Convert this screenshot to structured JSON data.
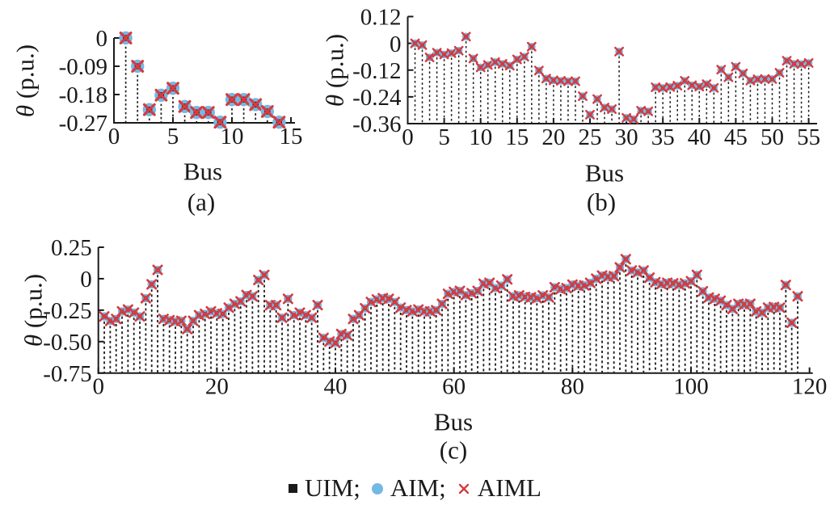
{
  "legend": {
    "items": [
      {
        "name": "UIM",
        "marker": "square",
        "color": "#1a1a1a",
        "label": "UIM;"
      },
      {
        "name": "AIM",
        "marker": "circle",
        "color": "#74B8E4",
        "label": "AIM;"
      },
      {
        "name": "AIML",
        "marker": "cross",
        "color": "#D63C41",
        "label": "AIML"
      }
    ]
  },
  "colors": {
    "uim_square": "#1a1a1a",
    "aim_circle": "#74B8E4",
    "aiml_cross": "#D63C41",
    "axis": "#1a1a1a",
    "stem": "#1a1a1a"
  },
  "chart_data": [
    {
      "id": "a",
      "type": "scatter",
      "caption": "(a)",
      "xlabel": "Bus",
      "ylabel": "θ (p.u.)",
      "ylabel_symbol": "θ",
      "ylabel_unit": " (p.u.)",
      "xlim": [
        0,
        15
      ],
      "ylim": [
        -0.27,
        0
      ],
      "grid": false,
      "legend_position": "shared-bottom",
      "xtick_labels": [
        "0",
        "5",
        "10",
        "15"
      ],
      "ytick_labels": [
        "0",
        "-0.09",
        "-0.18",
        "-0.27"
      ],
      "series_overlay": [
        "UIM",
        "AIM",
        "AIML"
      ],
      "note": "stem plot; the three method series coincide at every bus",
      "first_bus": 1,
      "values": [
        0,
        -0.09,
        -0.228,
        -0.182,
        -0.16,
        -0.218,
        -0.237,
        -0.237,
        -0.268,
        -0.196,
        -0.196,
        -0.212,
        -0.234,
        -0.268
      ]
    },
    {
      "id": "b",
      "type": "scatter",
      "caption": "(b)",
      "xlabel": "Bus",
      "ylabel": "θ (p.u.)",
      "ylabel_symbol": "θ",
      "ylabel_unit": " (p.u.)",
      "xlim": [
        0,
        55.6
      ],
      "ylim": [
        -0.36,
        0.12
      ],
      "grid": false,
      "legend_position": "shared-bottom",
      "xtick_labels": [
        "0",
        "5",
        "10",
        "15",
        "20",
        "25",
        "30",
        "35",
        "40",
        "45",
        "50",
        "55"
      ],
      "ytick_labels": [
        "0.12",
        "0",
        "-0.12",
        "-0.24",
        "-0.36"
      ],
      "series_overlay": [
        "UIM",
        "AIM",
        "AIML"
      ],
      "note": "stem plot; the three method series coincide at every bus",
      "first_bus": 1,
      "values": [
        0,
        -0.008,
        -0.063,
        -0.042,
        -0.05,
        -0.044,
        -0.033,
        0.03,
        -0.068,
        -0.108,
        -0.097,
        -0.084,
        -0.092,
        -0.1,
        -0.072,
        -0.06,
        -0.015,
        -0.122,
        -0.158,
        -0.166,
        -0.168,
        -0.17,
        -0.17,
        -0.237,
        -0.32,
        -0.25,
        -0.288,
        -0.295,
        -0.037,
        -0.334,
        -0.34,
        -0.302,
        -0.305,
        -0.197,
        -0.2,
        -0.196,
        -0.19,
        -0.168,
        -0.188,
        -0.194,
        -0.183,
        -0.2,
        -0.118,
        -0.152,
        -0.105,
        -0.135,
        -0.167,
        -0.161,
        -0.16,
        -0.16,
        -0.132,
        -0.078,
        -0.092,
        -0.093,
        -0.088
      ]
    },
    {
      "id": "c",
      "type": "scatter",
      "caption": "(c)",
      "xlabel": "Bus",
      "ylabel": "θ (p.u.)",
      "ylabel_symbol": "θ",
      "ylabel_unit": " (p.u.)",
      "xlim": [
        0,
        120
      ],
      "ylim": [
        -0.75,
        0.25
      ],
      "grid": false,
      "legend_position": "shared-bottom",
      "xtick_labels": [
        "0",
        "20",
        "40",
        "60",
        "80",
        "100",
        "120"
      ],
      "ytick_labels": [
        "0.25",
        "0",
        "-0.25",
        "-0.50",
        "-0.75"
      ],
      "series_overlay": [
        "UIM",
        "AIM",
        "AIML"
      ],
      "note": "stem plot; the three method series coincide at every bus",
      "first_bus": 1,
      "values": [
        -0.3,
        -0.335,
        -0.32,
        -0.26,
        -0.245,
        -0.27,
        -0.3,
        -0.155,
        -0.045,
        0.07,
        -0.32,
        -0.33,
        -0.34,
        -0.335,
        -0.4,
        -0.335,
        -0.29,
        -0.28,
        -0.26,
        -0.275,
        -0.28,
        -0.23,
        -0.2,
        -0.18,
        -0.13,
        -0.14,
        -0.01,
        0.03,
        -0.21,
        -0.21,
        -0.31,
        -0.16,
        -0.29,
        -0.27,
        -0.29,
        -0.31,
        -0.21,
        -0.47,
        -0.5,
        -0.51,
        -0.44,
        -0.45,
        -0.32,
        -0.29,
        -0.235,
        -0.185,
        -0.165,
        -0.155,
        -0.16,
        -0.185,
        -0.23,
        -0.25,
        -0.26,
        -0.245,
        -0.26,
        -0.26,
        -0.25,
        -0.2,
        -0.12,
        -0.105,
        -0.097,
        -0.13,
        -0.115,
        -0.097,
        -0.04,
        -0.033,
        -0.075,
        -0.055,
        -0.005,
        -0.14,
        -0.133,
        -0.145,
        -0.148,
        -0.155,
        -0.133,
        -0.148,
        -0.068,
        -0.083,
        -0.075,
        -0.047,
        -0.057,
        -0.053,
        -0.033,
        0.0,
        0.025,
        0.015,
        0.02,
        0.09,
        0.155,
        0.065,
        0.05,
        0.065,
        0.008,
        -0.028,
        -0.043,
        -0.033,
        -0.037,
        -0.048,
        -0.037,
        -0.02,
        0.03,
        -0.1,
        -0.15,
        -0.16,
        -0.175,
        -0.21,
        -0.24,
        -0.2,
        -0.205,
        -0.2,
        -0.26,
        -0.27,
        -0.23,
        -0.225,
        -0.23,
        -0.05,
        -0.35,
        -0.14
      ]
    }
  ]
}
